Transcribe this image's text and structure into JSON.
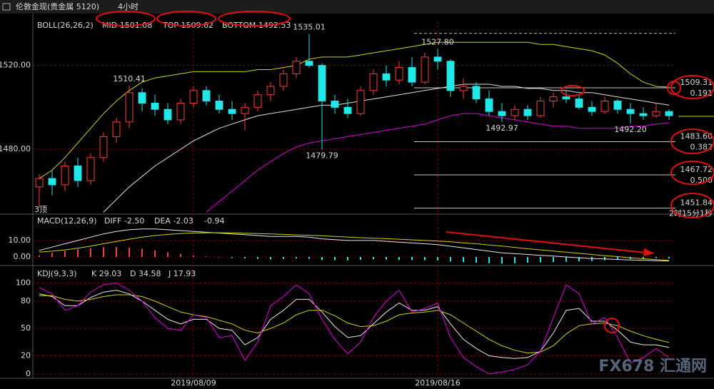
{
  "header": {
    "title": "伦敦金现(贵金属 5120)",
    "period": "4小时"
  },
  "watermark": "FX678 汇通网",
  "chart_data": [
    {
      "type": "candlestick",
      "indicator": "BOLL(26,26,2)",
      "categories": [
        null,
        null,
        null,
        null,
        null,
        null,
        null,
        null,
        null,
        null,
        null,
        null,
        "2019/08/09",
        null,
        null,
        null,
        null,
        null,
        null,
        null,
        null,
        null,
        null,
        null,
        null,
        null,
        null,
        null,
        null,
        null,
        null,
        "2019/08/16",
        null,
        null,
        null,
        null,
        null,
        null,
        null,
        null,
        null,
        null,
        null,
        null,
        null,
        null,
        null,
        null,
        null,
        null
      ],
      "open": [
        1462,
        1466,
        1463,
        1472,
        1465,
        1476,
        1486,
        1493,
        1507,
        1502,
        1499,
        1494,
        1502,
        1508,
        1503,
        1499,
        1497,
        1500,
        1506,
        1510,
        1516,
        1522,
        1520,
        1503,
        1500,
        1497,
        1508,
        1516,
        1513,
        1519,
        1512,
        1524,
        1522,
        1508,
        1510,
        1504,
        1498,
        1496,
        1499,
        1496,
        1503,
        1505,
        1504,
        1500,
        1498,
        1503,
        1499,
        1497,
        1496,
        1498
      ],
      "high": [
        1468,
        1470,
        1474,
        1476,
        1478,
        1488,
        1495,
        1510.41,
        1509,
        1506,
        1502,
        1504,
        1510,
        1510,
        1506,
        1503,
        1502,
        1508,
        1512,
        1518,
        1524,
        1535.01,
        1521,
        1506,
        1504,
        1510,
        1518,
        1520,
        1522,
        1524,
        1526,
        1527.8,
        1523,
        1514,
        1512,
        1508,
        1502,
        1501,
        1501,
        1505,
        1507,
        1508,
        1506,
        1503,
        1505,
        1504,
        1502,
        1500,
        1502,
        1499
      ],
      "low": [
        1452,
        1458,
        1460,
        1462,
        1463,
        1474,
        1483,
        1490,
        1498,
        1496,
        1492,
        1492,
        1500,
        1501,
        1497,
        1494,
        1489,
        1498,
        1503,
        1508,
        1514,
        1519,
        1479.79,
        1497,
        1495,
        1496,
        1506,
        1510,
        1511,
        1510,
        1511,
        1518,
        1505,
        1504,
        1502,
        1496,
        1492.97,
        1494,
        1494,
        1495,
        1500,
        1502,
        1499,
        1496,
        1497,
        1497,
        1492.2,
        1494,
        1495,
        1494
      ],
      "close": [
        1466,
        1463,
        1472,
        1465,
        1476,
        1486,
        1493,
        1507,
        1502,
        1499,
        1494,
        1502,
        1508,
        1503,
        1499,
        1497,
        1500,
        1506,
        1510,
        1516,
        1522,
        1520,
        1503,
        1500,
        1497,
        1508,
        1516,
        1513,
        1519,
        1512,
        1524,
        1522,
        1508,
        1510,
        1504,
        1498,
        1496,
        1499,
        1496,
        1503,
        1505,
        1504,
        1500,
        1498,
        1503,
        1499,
        1497,
        1496,
        1498,
        1496
      ],
      "up_color": "#ff3c3c",
      "down_color": "#20e8e8",
      "series": [
        {
          "name": "MID 1501.08",
          "color": "#e0e0e0",
          "values": [
            null,
            null,
            null,
            null,
            null,
            1450,
            1456,
            1462,
            1467,
            1472,
            1476,
            1480,
            1484,
            1487,
            1490,
            1492,
            1494,
            1496,
            1497,
            1498,
            1499,
            1500,
            1501,
            1501,
            1502,
            1503,
            1504,
            1505,
            1506,
            1507,
            1508,
            1509,
            1510,
            1511,
            1511,
            1511,
            1510,
            1510,
            1509,
            1509,
            1508,
            1508,
            1507,
            1507,
            1506,
            1505,
            1504,
            1503,
            1502,
            1501.08
          ]
        },
        {
          "name": "TOP 1509.62",
          "color": "#d4d400",
          "values": [
            1466,
            1470,
            1476,
            1483,
            1490,
            1497,
            1503,
            1508,
            1512,
            1514,
            1515,
            1516,
            1517,
            1517,
            1517,
            1517,
            1517,
            1518,
            1518,
            1519,
            1520,
            1523,
            1524,
            1524,
            1524,
            1525,
            1526,
            1527,
            1528,
            1529,
            1530,
            1531,
            1531,
            1531,
            1531,
            1531,
            1531,
            1531,
            1531,
            1530,
            1530,
            1529,
            1528,
            1527,
            1525,
            1521,
            1516,
            1512,
            1510,
            1509.62
          ]
        },
        {
          "name": "BOTTOM 1492.53",
          "color": "#e000e0",
          "values": [
            null,
            null,
            null,
            null,
            null,
            null,
            null,
            null,
            null,
            null,
            null,
            null,
            null,
            1450,
            1455,
            1460,
            1465,
            1470,
            1474,
            1478,
            1481,
            1483,
            1484,
            1485,
            1486,
            1487,
            1488,
            1489,
            1490,
            1491,
            1492,
            1494,
            1496,
            1497,
            1497,
            1496,
            1495,
            1494,
            1493,
            1492,
            1491,
            1491,
            1490,
            1490,
            1490,
            1490,
            1491,
            1491,
            1492,
            1492.53
          ]
        }
      ],
      "annotations": [
        {
          "value": 1510.41,
          "label": "1510.41"
        },
        {
          "value": 1535.01,
          "label": "1535.01"
        },
        {
          "value": 1479.79,
          "label": "1479.79"
        },
        {
          "value": 1527.8,
          "label": "1527.80"
        },
        {
          "value": 1492.97,
          "label": "1492.97"
        },
        {
          "value": 1492.2,
          "label": "1492.20"
        }
      ],
      "levels": [
        {
          "value": 1535.3
        },
        {
          "value": 1509.31,
          "label": "1509.31",
          "ratio": "0.191"
        },
        {
          "value": 1483.6,
          "label": "1483.60",
          "ratio": "0.382"
        },
        {
          "value": 1467.72,
          "label": "1467.72",
          "ratio": "0.500"
        },
        {
          "value": 1451.84,
          "label": "1451.84"
        }
      ],
      "countdown": "2时15分1秒",
      "marker_text": "3顶",
      "ylim": [
        1449,
        1541
      ],
      "yticks": [
        {
          "value": 1480,
          "label": "1480.00"
        },
        {
          "value": 1520,
          "label": "1520.00"
        }
      ],
      "grid": true
    },
    {
      "type": "macd",
      "indicator": "MACD(12,26,9)",
      "series": [
        {
          "name": "DIFF -2.50",
          "color": "#e8e8e8",
          "values": [
            4,
            6,
            8,
            10,
            12,
            14,
            15.5,
            16.5,
            17,
            17,
            16.5,
            16,
            15.5,
            15,
            14.5,
            14,
            13.5,
            13,
            12.5,
            12.5,
            12.5,
            12,
            11,
            10.5,
            10,
            10,
            10,
            9.5,
            9,
            8.5,
            8,
            7.5,
            6.5,
            5.5,
            4.5,
            3.5,
            2.5,
            2,
            1.5,
            1,
            0.5,
            0,
            -0.5,
            -1,
            -1.2,
            -1.5,
            -1.8,
            -2,
            -2.3,
            -2.5
          ]
        },
        {
          "name": "DEA -2.03",
          "color": "#d4d400",
          "values": [
            3,
            3.5,
            4.3,
            5.3,
            6.6,
            8,
            9.4,
            10.8,
            12,
            13,
            13.7,
            14.2,
            14.5,
            14.7,
            14.7,
            14.6,
            14.4,
            14.2,
            14,
            13.7,
            13.4,
            13.2,
            12.9,
            12.5,
            12.1,
            11.7,
            11.4,
            11.1,
            10.8,
            10.4,
            10,
            9.6,
            9.2,
            8.6,
            8,
            7.3,
            6.6,
            5.8,
            5,
            4.3,
            3.6,
            2.9,
            2.2,
            1.5,
            0.8,
            0.2,
            -0.5,
            -1.1,
            -1.6,
            -2.03
          ]
        }
      ],
      "histogram": {
        "name": "-0.94",
        "up_color": "#ff3c3c",
        "down_color": "#20e8e8",
        "values": [
          1,
          2.5,
          3.7,
          4.7,
          5.4,
          6,
          6.1,
          5.7,
          5,
          4,
          2.8,
          1.8,
          1,
          0.3,
          -0.2,
          -0.6,
          -0.9,
          -1.2,
          -1.5,
          -1.2,
          -0.9,
          -1.2,
          -1.9,
          -2,
          -2.1,
          -1.7,
          -1.4,
          -1.6,
          -1.8,
          -1.9,
          -2,
          -2.1,
          -2.7,
          -3.1,
          -3.5,
          -3.8,
          -4.1,
          -3.8,
          -3.5,
          -3.3,
          -3.1,
          -2.9,
          -2.7,
          -2.5,
          -2,
          -1.7,
          -1.3,
          -0.9,
          -0.7,
          -0.94
        ]
      },
      "ylim": [
        -5.2,
        26
      ],
      "yticks": [
        {
          "value": 0,
          "label": "0.00"
        },
        {
          "value": 10,
          "label": "10.00"
        }
      ],
      "grid": true
    },
    {
      "type": "line",
      "indicator": "KDJ(9,3,3)",
      "series": [
        {
          "name": "K 29.03",
          "color": "#e8e8e8",
          "values": [
            88,
            85,
            75,
            75,
            84,
            90,
            92,
            88,
            80,
            70,
            60,
            55,
            60,
            60,
            50,
            48,
            32,
            40,
            60,
            70,
            82,
            82,
            68,
            52,
            40,
            42,
            55,
            68,
            78,
            70,
            70,
            74,
            55,
            38,
            28,
            20,
            18,
            17,
            18,
            25,
            45,
            70,
            72,
            58,
            58,
            48,
            35,
            32,
            32,
            29.03
          ]
        },
        {
          "name": "D 34.58",
          "color": "#d4d400",
          "values": [
            86,
            86,
            82,
            80,
            82,
            85,
            87,
            87,
            85,
            80,
            74,
            68,
            65,
            63,
            59,
            55,
            48,
            45,
            50,
            56,
            65,
            70,
            70,
            64,
            56,
            52,
            53,
            58,
            65,
            67,
            68,
            70,
            65,
            56,
            47,
            38,
            31,
            26,
            23,
            24,
            31,
            44,
            53,
            55,
            56,
            53,
            47,
            42,
            38,
            34.58
          ]
        },
        {
          "name": "J 17.93",
          "color": "#e000e0",
          "values": [
            95,
            88,
            70,
            75,
            90,
            98,
            100,
            92,
            80,
            62,
            50,
            48,
            65,
            62,
            40,
            42,
            15,
            35,
            75,
            85,
            98,
            88,
            60,
            38,
            22,
            35,
            62,
            80,
            92,
            68,
            72,
            78,
            40,
            18,
            8,
            0,
            2,
            5,
            10,
            25,
            62,
            98,
            88,
            55,
            62,
            40,
            12,
            18,
            28,
            17.93
          ]
        }
      ],
      "ylim": [
        -4.8,
        116.8
      ],
      "yticks": [
        0,
        20,
        50,
        80,
        100
      ],
      "grid": true
    }
  ]
}
